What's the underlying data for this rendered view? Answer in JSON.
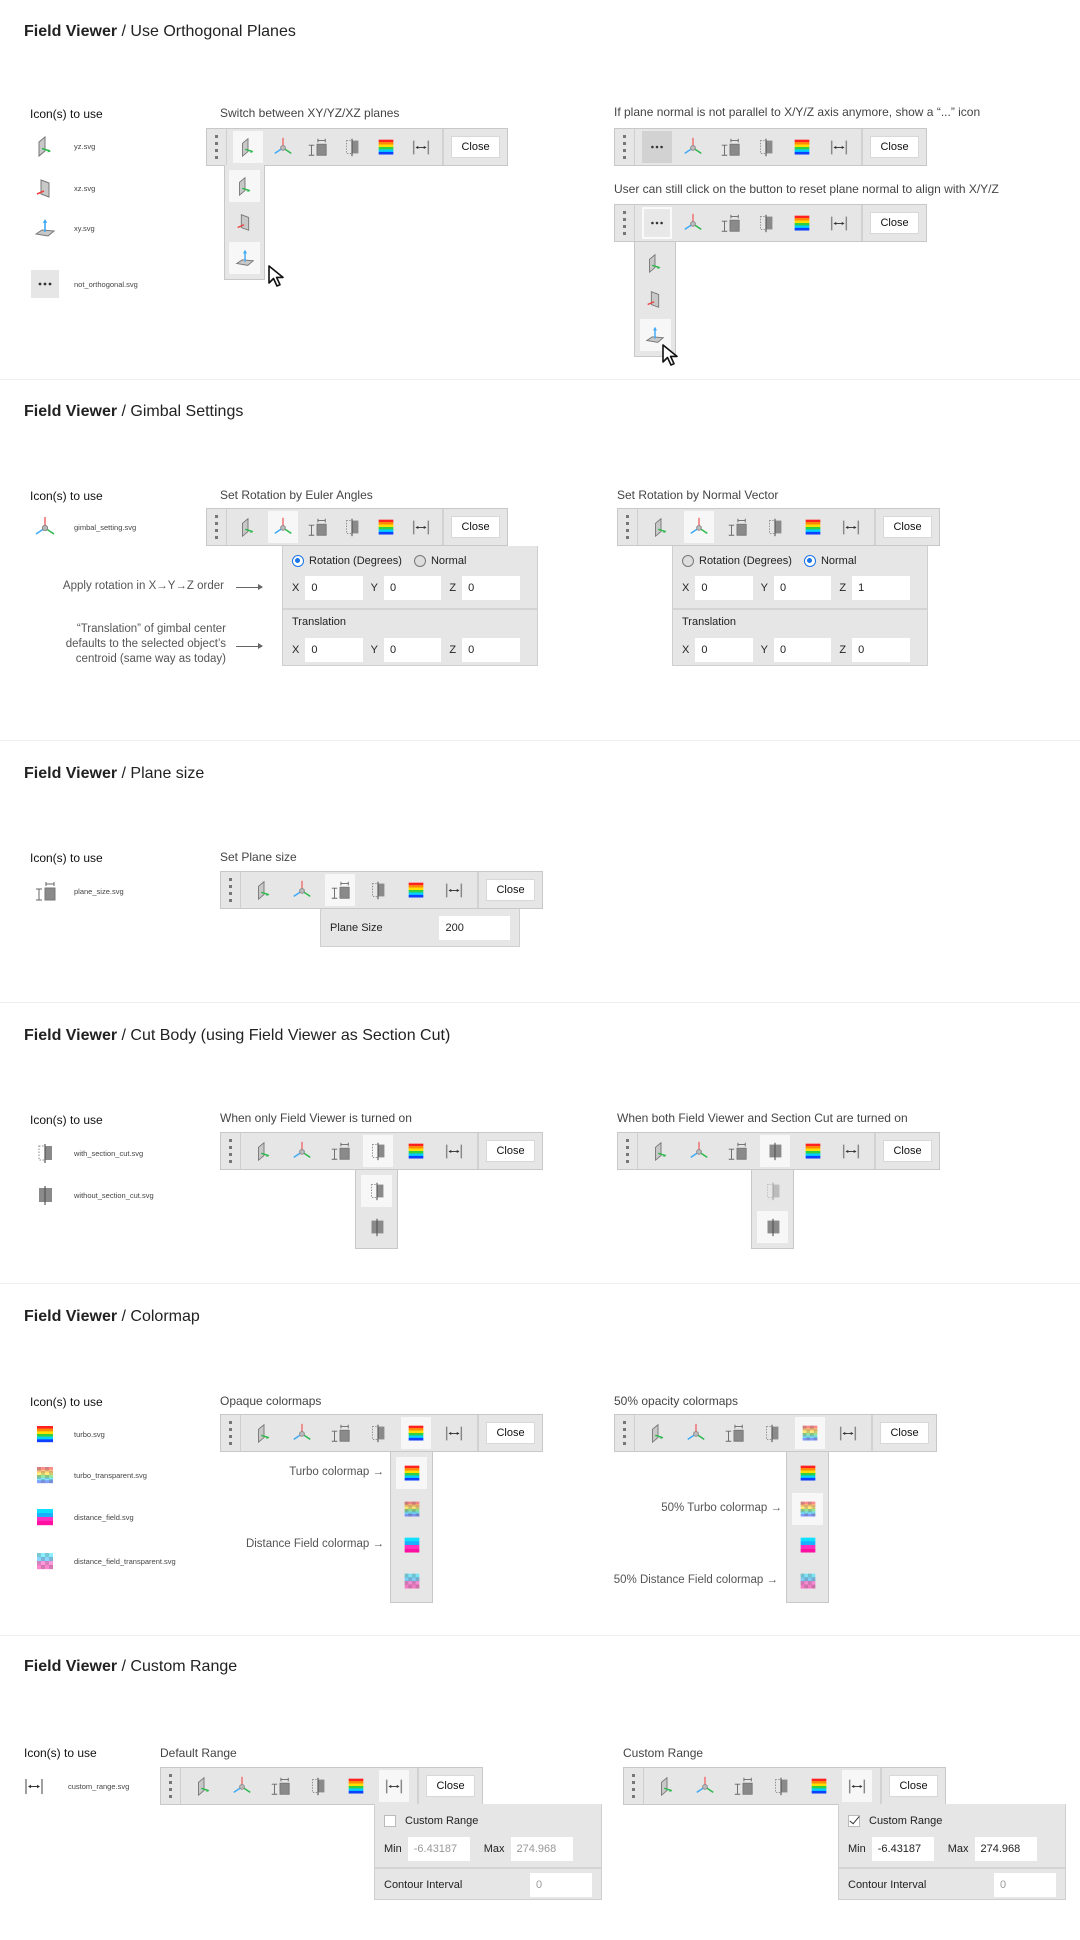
{
  "close_label": "Close",
  "icons_label": "Icon(s) to use",
  "axes": [
    "X",
    "Y",
    "Z"
  ],
  "sections": {
    "orthogonal": {
      "title_bold": "Field Viewer",
      "title_rest": " / Use Orthogonal Planes",
      "icons": [
        {
          "icon": "yz",
          "file": "yz.svg"
        },
        {
          "icon": "xz",
          "file": "xz.svg"
        },
        {
          "icon": "xy",
          "file": "xy.svg"
        },
        {
          "icon": "not_orthogonal",
          "file": "not_orthogonal.svg"
        }
      ],
      "caption_switch": "Switch between XY/YZ/XZ planes",
      "caption_not_parallel": "If plane normal is not parallel to X/Y/Z axis anymore, show a “...” icon",
      "caption_reset": "User can still click on the button to reset plane normal to align with X/Y/Z"
    },
    "gimbal": {
      "title_bold": "Field Viewer",
      "title_rest": " / Gimbal Settings",
      "icons": [
        {
          "icon": "gimbal",
          "file": "gimbal_setting.svg"
        }
      ],
      "caption_euler": "Set Rotation by Euler Angles",
      "caption_normal": "Set Rotation by Normal Vector",
      "annotation_order": "Apply rotation in X→Y→Z order",
      "annotation_translation": [
        "“Translation” of gimbal center",
        "defaults to the selected object’s",
        "centroid (same way as today)"
      ],
      "rotation_label": "Rotation (Degrees)",
      "normal_label": "Normal",
      "translation_label": "Translation",
      "euler_panel": {
        "mode": "rotation",
        "rotation": [
          "0",
          "0",
          "0"
        ],
        "translation": [
          "0",
          "0",
          "0"
        ]
      },
      "normal_panel": {
        "mode": "normal",
        "rotation": [
          "0",
          "0",
          "1"
        ],
        "translation": [
          "0",
          "0",
          "0"
        ]
      }
    },
    "plane_size": {
      "title_bold": "Field Viewer",
      "title_rest": " / Plane size",
      "icons": [
        {
          "icon": "plane_size",
          "file": "plane_size.svg"
        }
      ],
      "caption": "Set Plane size",
      "field_label": "Plane Size",
      "field_value": "200"
    },
    "cut_body": {
      "title_bold": "Field Viewer",
      "title_rest": " / Cut Body (using Field Viewer as Section Cut)",
      "icons": [
        {
          "icon": "with_section_cut",
          "file": "with_section_cut.svg"
        },
        {
          "icon": "without_section_cut",
          "file": "without_section_cut.svg"
        }
      ],
      "caption_only_fv": "When only Field Viewer is turned on",
      "caption_both": "When both Field Viewer and Section Cut are turned on"
    },
    "colormap": {
      "title_bold": "Field Viewer",
      "title_rest": " / Colormap",
      "icons": [
        {
          "icon": "turbo",
          "file": "turbo.svg"
        },
        {
          "icon": "turbo_transparent",
          "file": "turbo_transparent.svg"
        },
        {
          "icon": "distance_field",
          "file": "distance_field.svg"
        },
        {
          "icon": "distance_field_transparent",
          "file": "distance_field_transparent.svg"
        }
      ],
      "caption_opaque": "Opaque colormaps",
      "caption_transparent": "50% opacity colormaps",
      "label_turbo": "Turbo colormap →",
      "label_distance": "Distance Field colormap →",
      "label_turbo_50": "50% Turbo colormap →",
      "label_distance_50": "50% Distance Field colormap →"
    },
    "custom_range": {
      "title_bold": "Field Viewer",
      "title_rest": " / Custom Range",
      "icons": [
        {
          "icon": "custom_range",
          "file": "custom_range.svg"
        }
      ],
      "caption_default": "Default Range",
      "caption_custom": "Custom Range",
      "checkbox_label": "Custom Range",
      "min_label": "Min",
      "max_label": "Max",
      "contour_label": "Contour Interval",
      "default_panel": {
        "checked": false,
        "min": "-6.43187",
        "max": "274.968",
        "contour": "0"
      },
      "custom_panel": {
        "checked": true,
        "min": "-6.43187",
        "max": "274.968",
        "contour": "0"
      }
    }
  },
  "toolbars": {
    "orth_a": {
      "plane_icon": "yz",
      "cut_icon": "with_section_cut",
      "colormap_icon": "turbo",
      "active": 0,
      "state": ""
    },
    "orth_b": {
      "plane_icon": "not_orthogonal",
      "cut_icon": "with_section_cut",
      "colormap_icon": "turbo",
      "active": 0,
      "state": "pressed"
    },
    "orth_c": {
      "plane_icon": "not_orthogonal",
      "cut_icon": "with_section_cut",
      "colormap_icon": "turbo",
      "active": 0,
      "state": "outlined"
    },
    "gimbal_a": {
      "plane_icon": "yz",
      "cut_icon": "with_section_cut",
      "colormap_icon": "turbo",
      "active": 1,
      "state": ""
    },
    "gimbal_b": {
      "plane_icon": "yz",
      "cut_icon": "with_section_cut",
      "colormap_icon": "turbo",
      "active": 1,
      "state": ""
    },
    "plane": {
      "plane_icon": "yz",
      "cut_icon": "with_section_cut",
      "colormap_icon": "turbo",
      "active": 2,
      "state": ""
    },
    "cut_a": {
      "plane_icon": "yz",
      "cut_icon": "with_section_cut",
      "colormap_icon": "turbo",
      "active": 3,
      "state": ""
    },
    "cut_b": {
      "plane_icon": "yz",
      "cut_icon": "without_section_cut",
      "colormap_icon": "turbo",
      "active": 3,
      "state": ""
    },
    "cmap_a": {
      "plane_icon": "yz",
      "cut_icon": "with_section_cut",
      "colormap_icon": "turbo",
      "active": 4,
      "state": ""
    },
    "cmap_b": {
      "plane_icon": "yz",
      "cut_icon": "with_section_cut",
      "colormap_icon": "turbo_transparent",
      "active": 4,
      "state": ""
    },
    "range_a": {
      "plane_icon": "yz",
      "cut_icon": "with_section_cut",
      "colormap_icon": "turbo",
      "active": 5,
      "state": ""
    },
    "range_b": {
      "plane_icon": "yz",
      "cut_icon": "with_section_cut",
      "colormap_icon": "turbo",
      "active": 5,
      "state": ""
    }
  },
  "dropdowns": {
    "orth_a": {
      "items": [
        "yz",
        "xz",
        "xy"
      ],
      "highlighted": [
        0,
        2
      ],
      "disabled": []
    },
    "orth_c": {
      "items": [
        "yz",
        "xz",
        "xy"
      ],
      "highlighted": [
        2
      ],
      "disabled": []
    },
    "cut_a": {
      "items": [
        "with_section_cut",
        "without_section_cut"
      ],
      "highlighted": [
        0
      ],
      "disabled": []
    },
    "cut_b": {
      "items": [
        "with_section_cut",
        "without_section_cut"
      ],
      "highlighted": [
        1
      ],
      "disabled": [
        0
      ]
    },
    "cmap_a": {
      "items": [
        "turbo",
        "turbo_transparent",
        "distance_field",
        "distance_field_transparent"
      ],
      "highlighted": [
        0
      ],
      "disabled": []
    },
    "cmap_b": {
      "items": [
        "turbo",
        "turbo_transparent",
        "distance_field",
        "distance_field_transparent"
      ],
      "highlighted": [
        1
      ],
      "disabled": []
    }
  }
}
